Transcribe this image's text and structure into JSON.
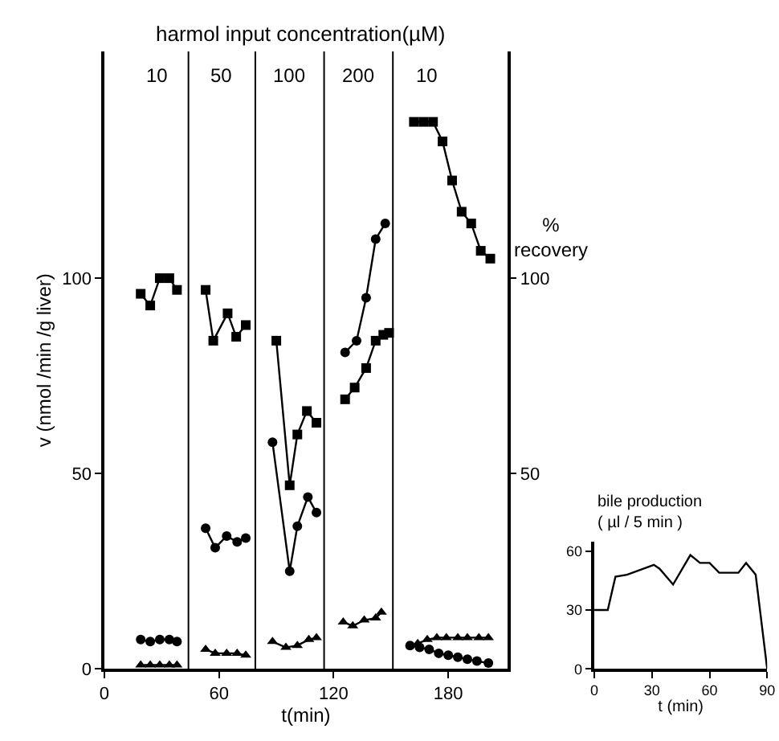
{
  "chart_data": [
    {
      "type": "line",
      "title": "harmol input concentration(µM)",
      "xlabel": "t(min)",
      "ylabel": "v (nmol /min /g liver)",
      "y2label": "% recovery",
      "xlim": [
        0,
        211
      ],
      "xticks": [
        0,
        60,
        120,
        180
      ],
      "ylim": [
        0,
        158
      ],
      "yticks": [
        0,
        50,
        100
      ],
      "y2lim": [
        0,
        158
      ],
      "y2ticks": [
        50,
        100
      ],
      "line_style": "solid",
      "series": [
        {
          "color": "#000000",
          "marker": "square",
          "x": [
            19,
            24,
            29,
            34,
            38,
            40,
            53,
            57,
            64.5,
            69,
            74,
            80,
            90,
            97,
            101,
            106,
            111,
            118,
            126,
            131,
            137,
            142,
            146,
            149,
            156,
            162,
            167,
            172,
            177,
            182,
            187,
            192,
            197,
            202
          ],
          "values": [
            96,
            93,
            100,
            100,
            97,
            null,
            97,
            84,
            91,
            85,
            88,
            null,
            84,
            47,
            60,
            66,
            63,
            null,
            69,
            72,
            77,
            84,
            85.5,
            86,
            null,
            140,
            140,
            140,
            135,
            125,
            117,
            114,
            107,
            105
          ]
        },
        {
          "color": "#000000",
          "marker": "circle",
          "x": [
            19,
            24,
            29,
            34,
            38,
            40,
            53,
            58,
            64,
            69.5,
            74,
            80,
            88,
            97,
            101,
            106.5,
            111,
            118,
            126,
            132,
            137,
            142,
            147,
            156,
            160,
            165,
            170,
            175,
            180,
            185,
            190,
            195,
            201
          ],
          "values": [
            7.5,
            7,
            7.5,
            7.5,
            7,
            null,
            36,
            31,
            34,
            32.5,
            33.5,
            null,
            58,
            25,
            36.5,
            44,
            40,
            null,
            81,
            84,
            95,
            110,
            114,
            null,
            6,
            5.5,
            5,
            4,
            3.5,
            3,
            2.5,
            2,
            1.5
          ]
        },
        {
          "color": "#000000",
          "marker": "triangle",
          "x": [
            19,
            24,
            29,
            34,
            38,
            40,
            53,
            58,
            64,
            69.5,
            74,
            80,
            88,
            95,
            101,
            107,
            111,
            118,
            125,
            130,
            136,
            142,
            145,
            156,
            164,
            169,
            174,
            179,
            185,
            190,
            196,
            201
          ],
          "values": [
            1,
            1,
            1,
            1,
            1,
            null,
            5,
            4,
            4,
            4,
            3.5,
            null,
            7,
            5.5,
            6,
            7.5,
            8,
            null,
            12,
            11,
            12.5,
            13,
            14.5,
            null,
            6.5,
            7.5,
            8,
            8,
            8,
            8,
            8,
            8
          ]
        }
      ],
      "ref_lines": [
        {
          "axis": "x",
          "value": 44,
          "color": "#000000"
        },
        {
          "axis": "x",
          "value": 79,
          "color": "#000000"
        },
        {
          "axis": "x",
          "value": 115,
          "color": "#000000"
        },
        {
          "axis": "x",
          "value": 151,
          "color": "#000000"
        }
      ],
      "annotations": [
        "10",
        "50",
        "100",
        "200",
        "10"
      ]
    },
    {
      "type": "line",
      "ylabel": "bile production\n( µl / 5 min )",
      "xlabel": "t (min)",
      "xlim": [
        0,
        90
      ],
      "xticks": [
        0,
        30,
        60,
        90
      ],
      "ylim": [
        0,
        65
      ],
      "yticks": [
        0,
        30,
        60
      ],
      "marker": "none",
      "series": [
        {
          "color": "#000000",
          "x": [
            0,
            7,
            11,
            17,
            31,
            34,
            41,
            50,
            55,
            60,
            65,
            75,
            79,
            84,
            90
          ],
          "values": [
            30,
            30,
            47,
            48,
            53,
            51,
            43,
            58,
            54,
            54,
            49,
            49,
            54,
            48,
            0
          ]
        }
      ]
    }
  ]
}
